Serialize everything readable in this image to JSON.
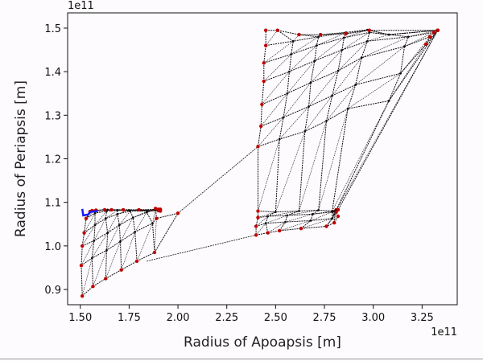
{
  "chart_data": {
    "type": "scatter",
    "xlabel": "Radius of Apoapsis [m]",
    "ylabel": "Radius of Periapsis [m]",
    "x_offset_label": "1e11",
    "y_offset_label": "1e11",
    "xlim": [
      1.435,
      3.43
    ],
    "ylim": [
      0.865,
      1.535
    ],
    "x_ticks": [
      1.5,
      1.75,
      2.0,
      2.25,
      2.5,
      2.75,
      3.0,
      3.25
    ],
    "x_tick_labels": [
      "1.50",
      "1.75",
      "2.00",
      "2.25",
      "2.50",
      "2.75",
      "3.00",
      "3.25"
    ],
    "y_ticks": [
      0.9,
      1.0,
      1.1,
      1.2,
      1.3,
      1.4,
      1.5
    ],
    "y_tick_labels": [
      "0.9",
      "1.0",
      "1.1",
      "1.2",
      "1.3",
      "1.4",
      "1.5"
    ],
    "grid": false,
    "colors": {
      "grid_lines": "#111111",
      "nodes": "#c00000",
      "trajectory": "#1a1aff"
    },
    "series": [
      {
        "type": "grid",
        "points": [
          [
            [
              1.51,
              0.885
            ],
            [
              1.565,
              0.907
            ],
            [
              1.63,
              0.925
            ],
            [
              1.71,
              0.945
            ],
            [
              1.79,
              0.965
            ],
            [
              1.88,
              0.985
            ],
            [
              2.0,
              1.075
            ]
          ],
          [
            [
              1.505,
              0.955
            ],
            [
              1.56,
              0.972
            ],
            [
              1.635,
              0.99
            ],
            [
              1.705,
              1.01
            ],
            [
              1.78,
              1.032
            ],
            [
              1.87,
              1.052
            ],
            [
              1.89,
              1.063
            ]
          ],
          [
            [
              1.51,
              1.0
            ],
            [
              1.57,
              1.012
            ],
            [
              1.64,
              1.03
            ],
            [
              1.7,
              1.048
            ],
            [
              1.77,
              1.065
            ],
            [
              1.84,
              1.077
            ],
            [
              1.885,
              1.086
            ]
          ],
          [
            [
              1.52,
              1.03
            ],
            [
              1.575,
              1.048
            ],
            [
              1.63,
              1.063
            ],
            [
              1.69,
              1.073
            ],
            [
              1.755,
              1.08
            ],
            [
              1.845,
              1.08
            ],
            [
              1.9,
              1.084
            ]
          ],
          [
            [
              1.53,
              1.063
            ],
            [
              1.575,
              1.075
            ],
            [
              1.635,
              1.08
            ],
            [
              1.69,
              1.082
            ],
            [
              1.75,
              1.082
            ],
            [
              1.81,
              1.082
            ],
            [
              1.91,
              1.08
            ]
          ],
          [
            [
              1.55,
              1.079
            ],
            [
              1.57,
              1.081
            ],
            [
              1.62,
              1.083
            ],
            [
              1.64,
              1.083
            ],
            [
              1.72,
              1.082
            ],
            [
              1.795,
              1.082
            ],
            [
              1.9,
              1.081
            ]
          ],
          [
            [
              1.56,
              1.081
            ],
            [
              1.58,
              1.082
            ],
            [
              1.625,
              1.083
            ],
            [
              1.66,
              1.083
            ],
            [
              1.72,
              1.083
            ],
            [
              1.8,
              1.083
            ],
            [
              1.91,
              1.084
            ]
          ]
        ]
      },
      {
        "type": "grid",
        "points": [
          [
            [
              2.4,
              1.025
            ],
            [
              2.46,
              1.03
            ],
            [
              2.52,
              1.035
            ],
            [
              2.63,
              1.04
            ],
            [
              2.76,
              1.045
            ],
            [
              2.8,
              1.053
            ],
            [
              2.82,
              1.068
            ]
          ],
          [
            [
              2.4,
              1.045
            ],
            [
              2.45,
              1.052
            ],
            [
              2.55,
              1.055
            ],
            [
              2.68,
              1.058
            ],
            [
              2.79,
              1.063
            ],
            [
              2.8,
              1.072
            ],
            [
              2.81,
              1.078
            ]
          ],
          [
            [
              2.41,
              1.065
            ],
            [
              2.46,
              1.068
            ],
            [
              2.56,
              1.07
            ],
            [
              2.69,
              1.073
            ],
            [
              2.79,
              1.078
            ],
            [
              2.8,
              1.08
            ],
            [
              2.81,
              1.083
            ]
          ],
          [
            [
              2.41,
              1.08
            ],
            [
              2.5,
              1.078
            ],
            [
              2.62,
              1.08
            ],
            [
              2.72,
              1.082
            ],
            [
              2.79,
              1.08
            ],
            [
              2.81,
              1.082
            ],
            [
              2.82,
              1.083
            ]
          ],
          [
            [
              2.41,
              1.228
            ],
            [
              2.52,
              1.245
            ],
            [
              2.65,
              1.263
            ],
            [
              2.76,
              1.287
            ],
            [
              2.87,
              1.315
            ],
            [
              3.08,
              1.333
            ],
            [
              3.33,
              1.495
            ]
          ],
          [
            [
              2.425,
              1.275
            ],
            [
              2.54,
              1.295
            ],
            [
              2.67,
              1.32
            ],
            [
              2.79,
              1.345
            ],
            [
              2.91,
              1.37
            ],
            [
              3.14,
              1.396
            ],
            [
              3.27,
              1.463
            ]
          ],
          [
            [
              2.43,
              1.325
            ],
            [
              2.56,
              1.35
            ],
            [
              2.68,
              1.375
            ],
            [
              2.82,
              1.402
            ],
            [
              2.94,
              1.432
            ],
            [
              3.16,
              1.458
            ],
            [
              3.29,
              1.48
            ]
          ],
          [
            [
              2.44,
              1.378
            ],
            [
              2.57,
              1.4
            ],
            [
              2.7,
              1.425
            ],
            [
              2.84,
              1.45
            ],
            [
              2.97,
              1.47
            ],
            [
              3.18,
              1.48
            ],
            [
              3.31,
              1.49
            ]
          ],
          [
            [
              2.44,
              1.42
            ],
            [
              2.58,
              1.44
            ],
            [
              2.71,
              1.46
            ],
            [
              2.85,
              1.478
            ],
            [
              2.98,
              1.49
            ],
            [
              3.08,
              1.485
            ],
            [
              3.33,
              1.495
            ]
          ],
          [
            [
              2.45,
              1.46
            ],
            [
              2.59,
              1.47
            ],
            [
              2.72,
              1.48
            ],
            [
              2.86,
              1.49
            ],
            [
              2.97,
              1.496
            ],
            [
              3.08,
              1.485
            ],
            [
              3.33,
              1.495
            ]
          ],
          [
            [
              2.45,
              1.495
            ],
            [
              2.51,
              1.495
            ],
            [
              2.62,
              1.485
            ],
            [
              2.73,
              1.485
            ],
            [
              2.86,
              1.487
            ],
            [
              2.98,
              1.495
            ],
            [
              3.33,
              1.495
            ]
          ]
        ]
      }
    ],
    "connections": [
      [
        [
          2.0,
          1.075
        ],
        [
          2.41,
          1.228
        ]
      ],
      [
        [
          1.84,
          0.965
        ],
        [
          2.4,
          1.025
        ]
      ]
    ],
    "trajectory": [
      [
        1.51,
        1.085
      ],
      [
        1.515,
        1.07
      ],
      [
        1.54,
        1.072
      ],
      [
        1.55,
        1.078
      ],
      [
        1.59,
        1.08
      ]
    ]
  }
}
